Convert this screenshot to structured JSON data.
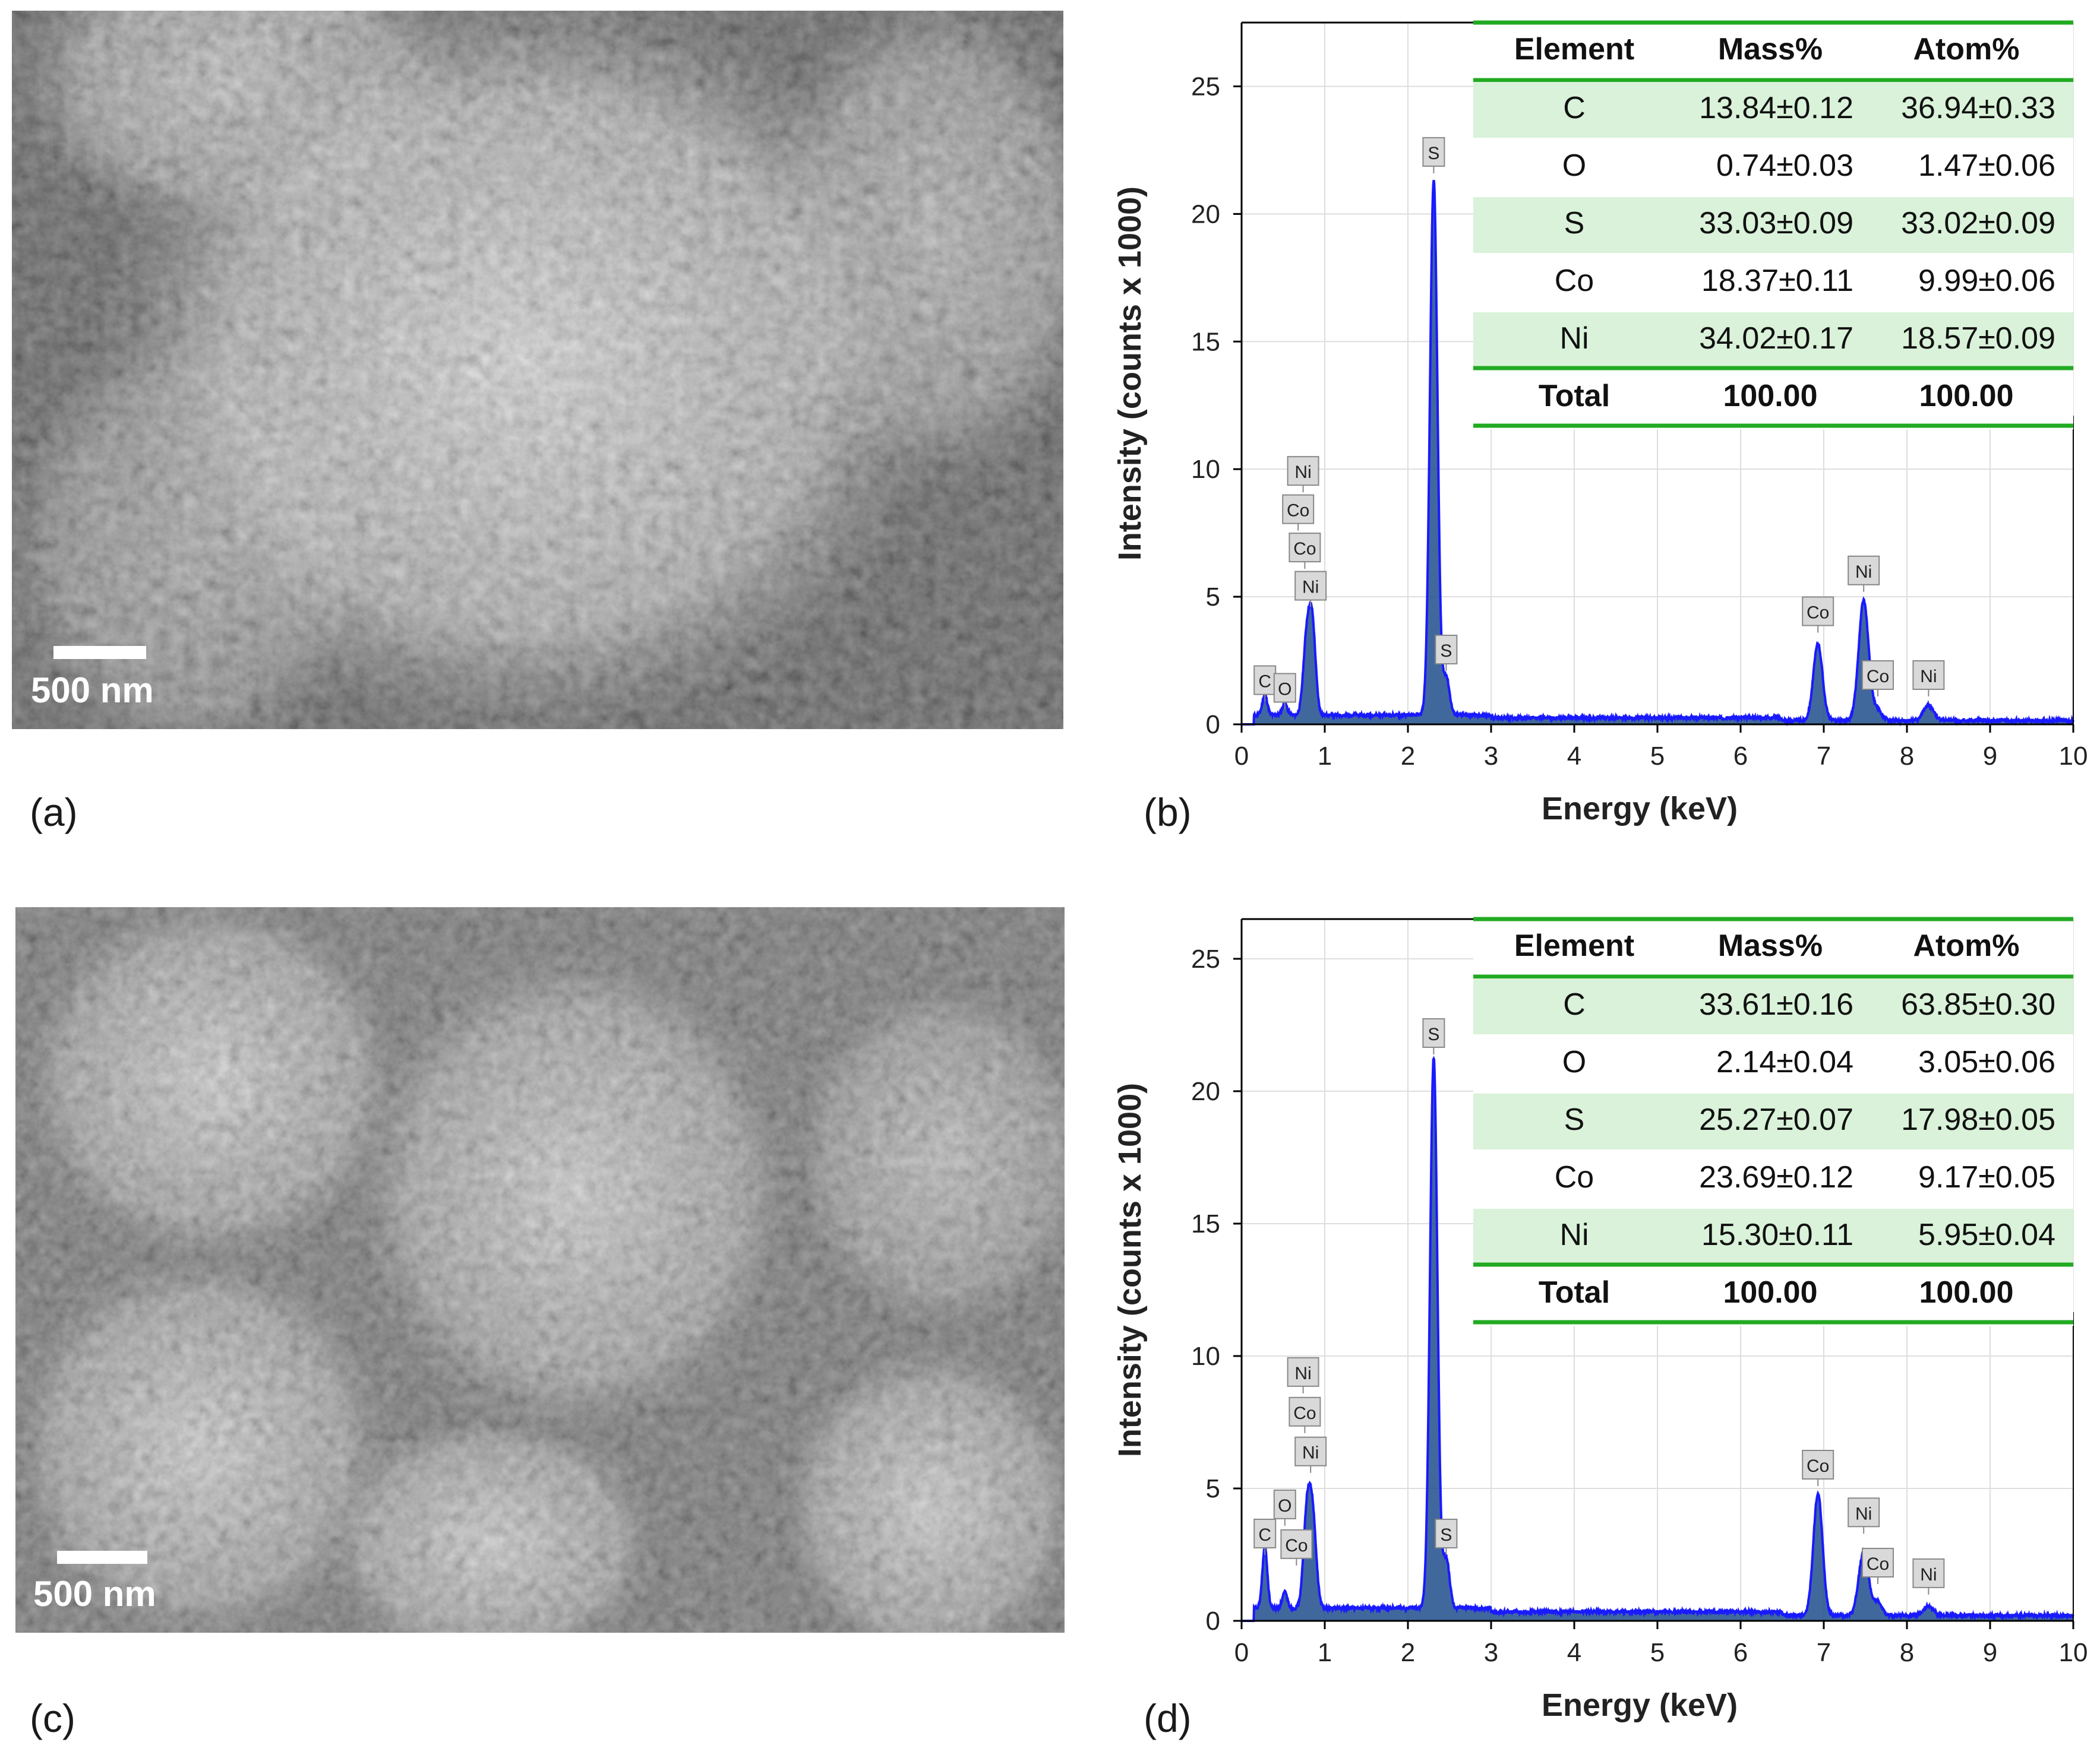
{
  "panels": {
    "a": {
      "label": "(a)",
      "scale_text": "500 nm"
    },
    "b": {
      "label": "(b)"
    },
    "c": {
      "label": "(c)",
      "scale_text": "500 nm"
    },
    "d": {
      "label": "(d)"
    }
  },
  "colors": {
    "spectrum": "#1a1aff",
    "peak_fill": "#1f4e8c",
    "table_band": "#d9f2d9",
    "table_rule": "#22aa22"
  },
  "chart_data": [
    {
      "panel": "b",
      "type": "line",
      "xlabel": "Energy (keV)",
      "ylabel": "Intensity (counts x 1000)",
      "xlim": [
        0,
        10
      ],
      "ylim": [
        0,
        27.5
      ],
      "xticks": [
        0,
        1,
        2,
        3,
        4,
        5,
        6,
        7,
        8,
        9,
        10
      ],
      "yticks": [
        0,
        5,
        10,
        15,
        20,
        25
      ],
      "grid": true,
      "background": 0.3,
      "peaks": [
        {
          "x": 0.28,
          "y": 0.8,
          "w": 0.03
        },
        {
          "x": 0.52,
          "y": 0.45,
          "w": 0.03
        },
        {
          "x": 0.78,
          "y": 2.8,
          "w": 0.04
        },
        {
          "x": 0.85,
          "y": 3.5,
          "w": 0.04
        },
        {
          "x": 2.31,
          "y": 21.0,
          "w": 0.045
        },
        {
          "x": 2.46,
          "y": 1.5,
          "w": 0.04
        },
        {
          "x": 6.93,
          "y": 3.0,
          "w": 0.055
        },
        {
          "x": 7.48,
          "y": 4.7,
          "w": 0.06
        },
        {
          "x": 7.65,
          "y": 0.4,
          "w": 0.05
        },
        {
          "x": 8.26,
          "y": 0.6,
          "w": 0.06
        }
      ],
      "peak_labels": [
        {
          "text": "C",
          "x": 0.28,
          "y": 0.8
        },
        {
          "text": "O",
          "x": 0.52,
          "y": 0.5
        },
        {
          "text": "Ni",
          "x": 0.74,
          "y": 9.0
        },
        {
          "text": "Co",
          "x": 0.68,
          "y": 7.5
        },
        {
          "text": "Co",
          "x": 0.76,
          "y": 6.0
        },
        {
          "text": "Ni",
          "x": 0.83,
          "y": 4.5
        },
        {
          "text": "S",
          "x": 2.31,
          "y": 21.5
        },
        {
          "text": "S",
          "x": 2.46,
          "y": 2.0
        },
        {
          "text": "Co",
          "x": 6.93,
          "y": 3.5
        },
        {
          "text": "Ni",
          "x": 7.48,
          "y": 5.1
        },
        {
          "text": "Co",
          "x": 7.65,
          "y": 1.0
        },
        {
          "text": "Ni",
          "x": 8.26,
          "y": 1.0
        }
      ],
      "table": {
        "headers": [
          "Element",
          "Mass%",
          "Atom%"
        ],
        "rows": [
          [
            "C",
            "13.84±0.12",
            "36.94±0.33"
          ],
          [
            "O",
            "0.74±0.03",
            "1.47±0.06"
          ],
          [
            "S",
            "33.03±0.09",
            "33.02±0.09"
          ],
          [
            "Co",
            "18.37±0.11",
            "9.99±0.06"
          ],
          [
            "Ni",
            "34.02±0.17",
            "18.57±0.09"
          ]
        ],
        "total": [
          "Total",
          "100.00",
          "100.00"
        ]
      }
    },
    {
      "panel": "d",
      "type": "line",
      "xlabel": "Energy (keV)",
      "ylabel": "Intensity (counts x 1000)",
      "xlim": [
        0,
        10
      ],
      "ylim": [
        0,
        26.5
      ],
      "xticks": [
        0,
        1,
        2,
        3,
        4,
        5,
        6,
        7,
        8,
        9,
        10
      ],
      "yticks": [
        0,
        5,
        10,
        15,
        20,
        25
      ],
      "grid": true,
      "background": 0.4,
      "peaks": [
        {
          "x": 0.28,
          "y": 2.3,
          "w": 0.03
        },
        {
          "x": 0.52,
          "y": 0.6,
          "w": 0.03
        },
        {
          "x": 0.78,
          "y": 3.0,
          "w": 0.04
        },
        {
          "x": 0.85,
          "y": 3.6,
          "w": 0.045
        },
        {
          "x": 2.31,
          "y": 20.8,
          "w": 0.045
        },
        {
          "x": 2.46,
          "y": 1.9,
          "w": 0.04
        },
        {
          "x": 6.93,
          "y": 4.6,
          "w": 0.055
        },
        {
          "x": 7.48,
          "y": 2.4,
          "w": 0.06
        },
        {
          "x": 7.65,
          "y": 0.5,
          "w": 0.05
        },
        {
          "x": 8.26,
          "y": 0.35,
          "w": 0.06
        }
      ],
      "peak_labels": [
        {
          "text": "C",
          "x": 0.28,
          "y": 2.4
        },
        {
          "text": "O",
          "x": 0.52,
          "y": 3.5
        },
        {
          "text": "Co",
          "x": 0.66,
          "y": 2.0
        },
        {
          "text": "Ni",
          "x": 0.74,
          "y": 8.5
        },
        {
          "text": "Co",
          "x": 0.76,
          "y": 7.0
        },
        {
          "text": "Ni",
          "x": 0.83,
          "y": 5.5
        },
        {
          "text": "S",
          "x": 2.31,
          "y": 21.3
        },
        {
          "text": "S",
          "x": 2.46,
          "y": 2.4
        },
        {
          "text": "Co",
          "x": 6.93,
          "y": 5.0
        },
        {
          "text": "Ni",
          "x": 7.48,
          "y": 3.2
        },
        {
          "text": "Co",
          "x": 7.65,
          "y": 1.3
        },
        {
          "text": "Ni",
          "x": 8.26,
          "y": 0.9
        }
      ],
      "table": {
        "headers": [
          "Element",
          "Mass%",
          "Atom%"
        ],
        "rows": [
          [
            "C",
            "33.61±0.16",
            "63.85±0.30"
          ],
          [
            "O",
            "2.14±0.04",
            "3.05±0.06"
          ],
          [
            "S",
            "25.27±0.07",
            "17.98±0.05"
          ],
          [
            "Co",
            "23.69±0.12",
            "9.17±0.05"
          ],
          [
            "Ni",
            "15.30±0.11",
            "5.95±0.04"
          ]
        ],
        "total": [
          "Total",
          "100.00",
          "100.00"
        ]
      }
    }
  ]
}
